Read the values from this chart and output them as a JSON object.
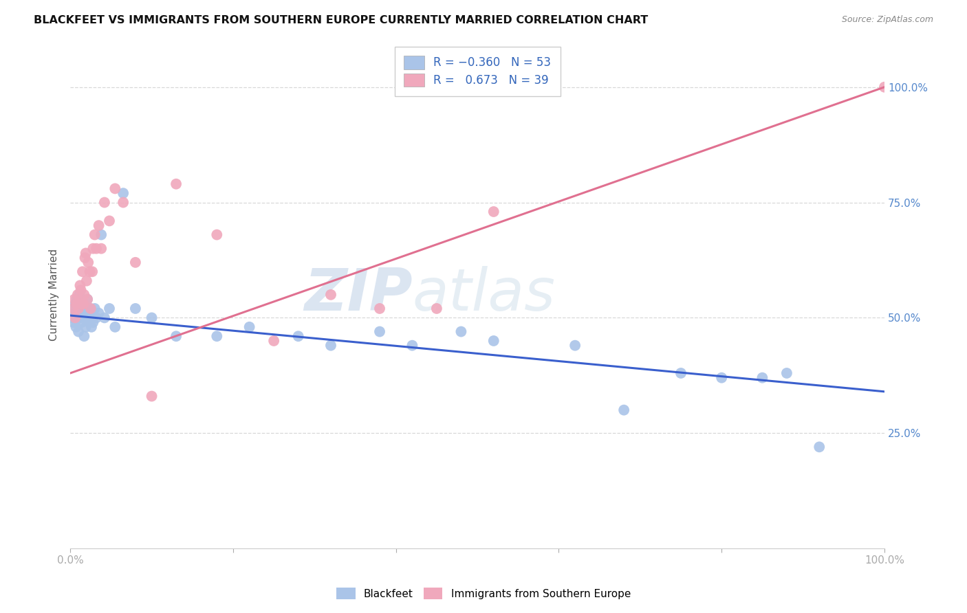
{
  "title": "BLACKFEET VS IMMIGRANTS FROM SOUTHERN EUROPE CURRENTLY MARRIED CORRELATION CHART",
  "source": "Source: ZipAtlas.com",
  "ylabel": "Currently Married",
  "blue_line_color": "#3a5fcd",
  "pink_line_color": "#e07090",
  "blue_dot_color": "#aac4e8",
  "pink_dot_color": "#f0a8bc",
  "blue_line_intercept": 0.505,
  "blue_line_slope": -0.165,
  "pink_line_intercept": 0.38,
  "pink_line_slope": 0.62,
  "blue_x": [
    0.002,
    0.003,
    0.004,
    0.005,
    0.006,
    0.007,
    0.008,
    0.009,
    0.01,
    0.011,
    0.012,
    0.013,
    0.014,
    0.015,
    0.016,
    0.017,
    0.018,
    0.019,
    0.02,
    0.021,
    0.022,
    0.023,
    0.024,
    0.025,
    0.026,
    0.027,
    0.028,
    0.03,
    0.032,
    0.035,
    0.038,
    0.042,
    0.048,
    0.055,
    0.065,
    0.08,
    0.1,
    0.13,
    0.18,
    0.22,
    0.28,
    0.32,
    0.38,
    0.42,
    0.48,
    0.52,
    0.62,
    0.68,
    0.75,
    0.8,
    0.85,
    0.88,
    0.92
  ],
  "blue_y": [
    0.5,
    0.52,
    0.49,
    0.51,
    0.53,
    0.48,
    0.54,
    0.5,
    0.47,
    0.55,
    0.5,
    0.52,
    0.49,
    0.51,
    0.53,
    0.46,
    0.5,
    0.48,
    0.52,
    0.54,
    0.5,
    0.49,
    0.51,
    0.52,
    0.48,
    0.5,
    0.49,
    0.52,
    0.5,
    0.51,
    0.68,
    0.5,
    0.52,
    0.48,
    0.77,
    0.52,
    0.5,
    0.46,
    0.46,
    0.48,
    0.46,
    0.44,
    0.47,
    0.44,
    0.47,
    0.45,
    0.44,
    0.3,
    0.38,
    0.37,
    0.37,
    0.38,
    0.22
  ],
  "pink_x": [
    0.003,
    0.005,
    0.006,
    0.008,
    0.009,
    0.01,
    0.012,
    0.013,
    0.014,
    0.015,
    0.016,
    0.017,
    0.018,
    0.019,
    0.02,
    0.021,
    0.022,
    0.024,
    0.025,
    0.027,
    0.028,
    0.03,
    0.032,
    0.035,
    0.038,
    0.042,
    0.048,
    0.055,
    0.065,
    0.08,
    0.1,
    0.13,
    0.18,
    0.25,
    0.32,
    0.38,
    0.45,
    0.52,
    1.0
  ],
  "pink_y": [
    0.52,
    0.54,
    0.5,
    0.53,
    0.55,
    0.52,
    0.57,
    0.56,
    0.53,
    0.6,
    0.53,
    0.55,
    0.63,
    0.64,
    0.58,
    0.54,
    0.62,
    0.6,
    0.52,
    0.6,
    0.65,
    0.68,
    0.65,
    0.7,
    0.65,
    0.75,
    0.71,
    0.78,
    0.75,
    0.62,
    0.33,
    0.79,
    0.68,
    0.45,
    0.55,
    0.52,
    0.52,
    0.73,
    1.0
  ],
  "watermark_zip": "ZIP",
  "watermark_atlas": "atlas",
  "background_color": "#ffffff",
  "grid_color": "#d8d8d8",
  "xlim": [
    0.0,
    1.0
  ],
  "ylim": [
    0.0,
    1.1
  ],
  "yticks": [
    0.25,
    0.5,
    0.75,
    1.0
  ],
  "ytick_labels": [
    "25.0%",
    "50.0%",
    "75.0%",
    "100.0%"
  ]
}
